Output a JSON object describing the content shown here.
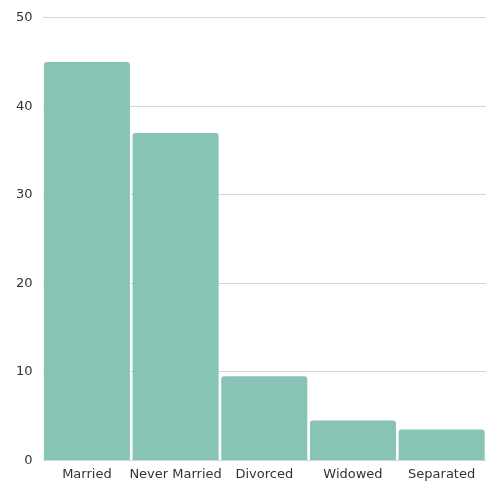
{
  "chart_data": {
    "type": "bar",
    "categories": [
      "Married",
      "Never Married",
      "Divorced",
      "Widowed",
      "Separated"
    ],
    "values": [
      45,
      37,
      9.5,
      4.5,
      3.5
    ],
    "color": "#88c4b5",
    "ylim": [
      0,
      50
    ],
    "yticks": [
      0,
      10,
      20,
      30,
      40,
      50
    ],
    "grid": true
  }
}
